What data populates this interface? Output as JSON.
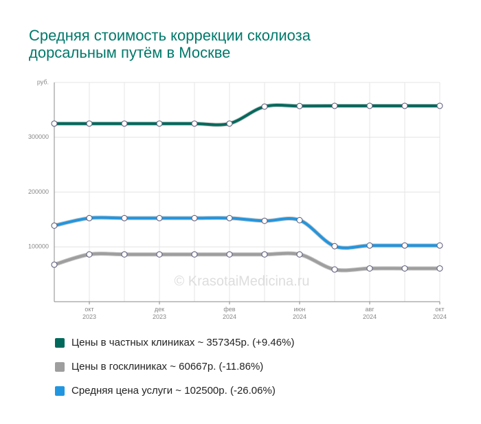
{
  "chart_data": {
    "type": "line",
    "title": [
      "Средняя стоимость коррекции сколиоза",
      "дорсальным путём в Москве"
    ],
    "watermark": "© KrasotaiMedicina.ru",
    "categories": [
      null,
      "окт\n2023",
      null,
      "дек\n2023",
      null,
      "фев\n2024",
      null,
      "июн\n2024",
      null,
      "авг\n2024",
      null,
      "окт\n2024"
    ],
    "series": [
      {
        "name": "Цены в частных клиниках ~ 357345р. (+9.46%)",
        "color": "#00695c",
        "values": [
          325000,
          325000,
          325000,
          325000,
          325000,
          325000,
          356000,
          357000,
          357345,
          357345,
          357345,
          357345
        ]
      },
      {
        "name": "Цены в госклиниках ~ 60667р. (-11.86%)",
        "color": "#9e9e9e",
        "values": [
          67500,
          86250,
          86250,
          86250,
          86250,
          86250,
          86250,
          86250,
          58750,
          60667,
          60667,
          60667
        ]
      },
      {
        "name": "Средняя цена услуги ~ 102500р. (-26.06%)",
        "color": "#2196e0",
        "values": [
          138750,
          152500,
          152500,
          152500,
          152500,
          152500,
          147500,
          148750,
          101250,
          102500,
          102500,
          102500
        ]
      }
    ],
    "ylim": [
      0,
      400000
    ],
    "yticks": [
      100000,
      200000,
      300000,
      {
        "value": 400000,
        "label": "руб."
      }
    ],
    "grid": true
  }
}
